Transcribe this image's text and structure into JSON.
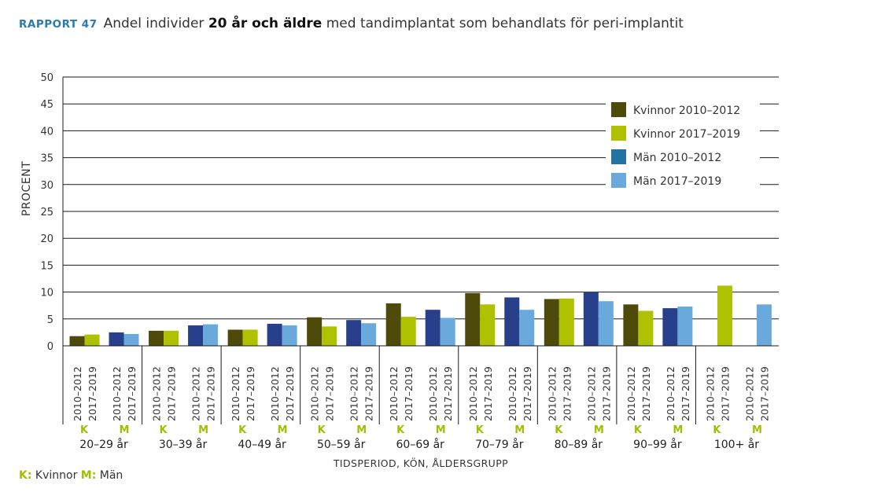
{
  "header": {
    "tag": "RAPPORT 47",
    "title_part1": "Andel individer ",
    "title_part2": "20 år och äldre",
    "title_part3": " med tandimplantat som behandlats för peri-implantit"
  },
  "footnote": {
    "k_key": "K:",
    "k_label": " Kvinnor ",
    "m_key": "M:",
    "m_label": " Män"
  },
  "chart_data": {
    "type": "bar",
    "ylabel": "PROCENT",
    "xlabel": "TIDSPERIOD, KÖN, ÅLDERSGRUPP",
    "ylim": [
      0,
      50
    ],
    "yticks": [
      0,
      5,
      10,
      15,
      20,
      25,
      30,
      35,
      40,
      45,
      50
    ],
    "grid": true,
    "legend_position": "top-right",
    "period_labels": [
      "2010–2012",
      "2017–2019"
    ],
    "age_groups": [
      "20–29 år",
      "30–39 år",
      "40–49 år",
      "50–59 år",
      "60–69 år",
      "70–79 år",
      "80–89 år",
      "90–99 år",
      "100+ år"
    ],
    "sex_labels": [
      "K",
      "M"
    ],
    "series": [
      {
        "name": "Kvinnor 2010–2012",
        "color": "#4d4a0a",
        "values": [
          1.8,
          2.8,
          3.0,
          5.3,
          7.9,
          9.8,
          8.7,
          7.7,
          0
        ]
      },
      {
        "name": "Kvinnor 2017–2019",
        "color": "#aec200",
        "values": [
          2.1,
          2.8,
          3.0,
          3.6,
          5.4,
          7.7,
          8.8,
          6.5,
          11.2
        ]
      },
      {
        "name": "Män 2010–2012",
        "color": "#283f8c",
        "values": [
          2.5,
          3.8,
          4.1,
          4.8,
          6.7,
          9.0,
          10.0,
          7.0,
          0
        ]
      },
      {
        "name": "Män 2017–2019",
        "color": "#6aa9dc",
        "values": [
          2.2,
          4.0,
          3.8,
          4.2,
          5.2,
          6.7,
          8.3,
          7.3,
          7.7
        ]
      }
    ],
    "legend": [
      {
        "label": "Kvinnor 2010–2012",
        "color": "#4d4a0a"
      },
      {
        "label": "Kvinnor 2017–2019",
        "color": "#aec200"
      },
      {
        "label": "Män 2010–2012",
        "color": "#2471a3"
      },
      {
        "label": "Män 2017–2019",
        "color": "#6aa9dc"
      }
    ],
    "sex_label_color": "#a5bd00"
  }
}
